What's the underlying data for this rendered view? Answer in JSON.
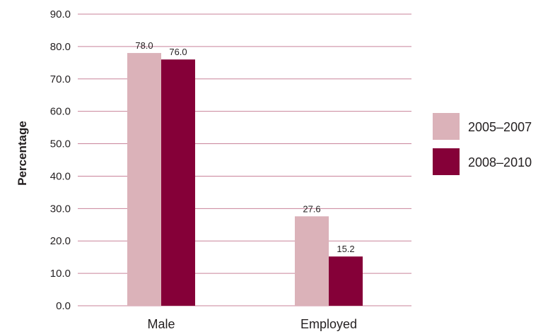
{
  "chart_data": {
    "type": "bar",
    "title": "",
    "xlabel": "",
    "ylabel": "Percentage",
    "categories": [
      "Male",
      "Employed"
    ],
    "series": [
      {
        "name": "2005–2007",
        "values": [
          78.0,
          27.6
        ],
        "color": "#dbb2b9"
      },
      {
        "name": "2008–2010",
        "values": [
          76.0,
          15.2
        ],
        "color": "#850038"
      }
    ],
    "data_labels": [
      [
        "78.0",
        "27.6"
      ],
      [
        "76.0",
        "15.2"
      ]
    ],
    "ylim": [
      0,
      90
    ],
    "yticks": [
      0,
      10,
      20,
      30,
      40,
      50,
      60,
      70,
      80,
      90
    ],
    "ytick_labels": [
      "0.0",
      "10.0",
      "20.0",
      "30.0",
      "40.0",
      "50.0",
      "60.0",
      "70.0",
      "80.0",
      "90.0"
    ],
    "grid": true,
    "grid_color": "#c9839a",
    "legend_position": "right"
  }
}
